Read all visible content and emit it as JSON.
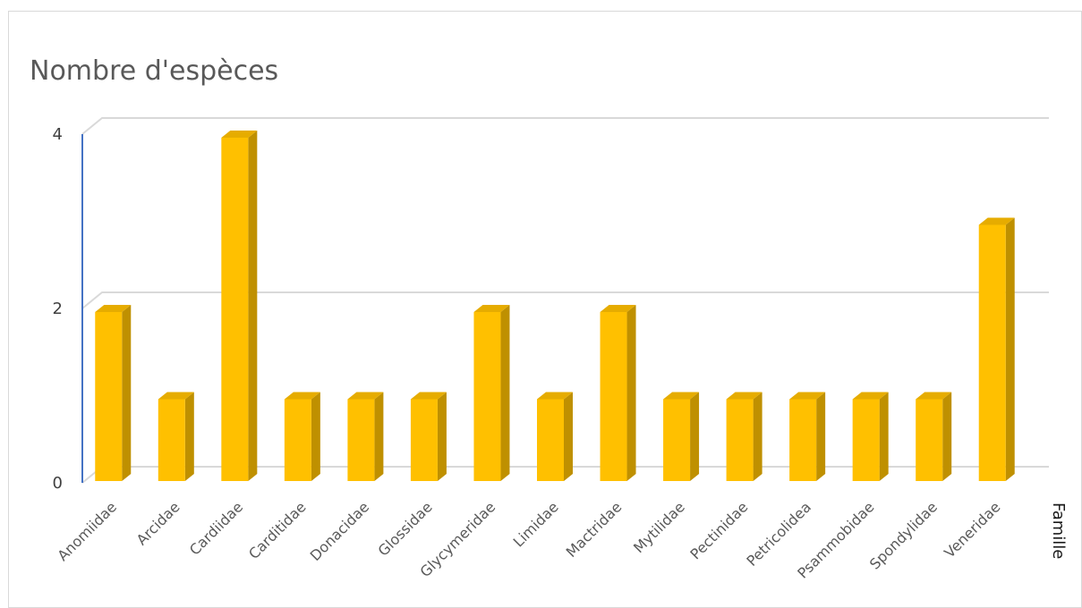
{
  "chart_data": {
    "type": "bar",
    "title": "Nombre d'espèces",
    "xlabel": "Famille",
    "ylabel": "",
    "categories": [
      "Anomiidae",
      "Arcidae",
      "Cardiidae",
      "Carditidae",
      "Donacidae",
      "Glossidae",
      "Glycymeridae",
      "Limidae",
      "Mactridae",
      "Mytilidae",
      "Pectinidae",
      "Petricolidea",
      "Psammobidae",
      "Spondylidae",
      "Veneridae"
    ],
    "values": [
      2,
      1,
      4,
      1,
      1,
      1,
      2,
      1,
      2,
      1,
      1,
      1,
      1,
      1,
      3
    ],
    "ylim": [
      0,
      4
    ],
    "yticks": [
      0,
      2,
      4
    ],
    "grid": true,
    "legend": "none",
    "colors": {
      "bar_front": "#ffc000",
      "bar_side": "#bf9000",
      "bar_top": "#e6ac00",
      "grid": "#d9d9d9",
      "axis": "#4472c4"
    }
  }
}
